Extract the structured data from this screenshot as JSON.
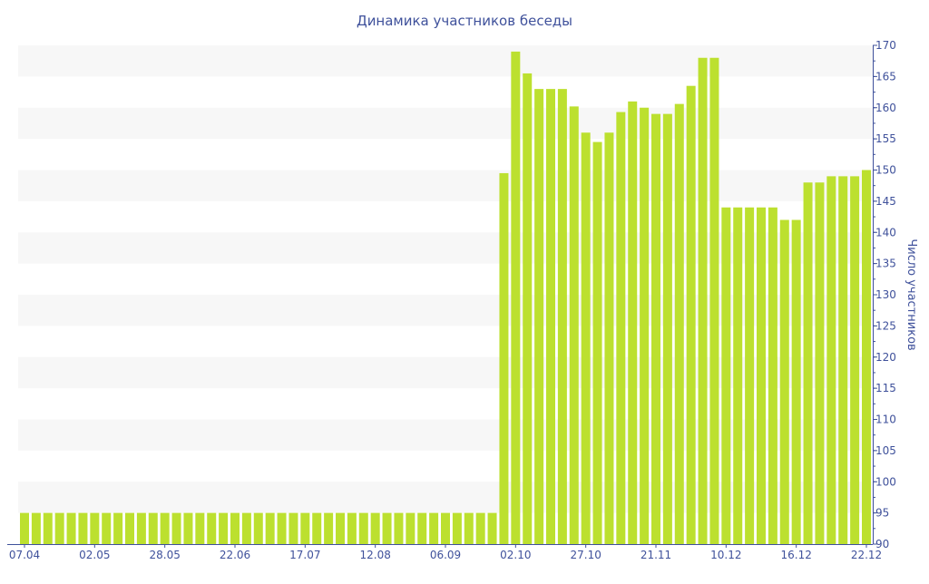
{
  "chart_data": {
    "type": "bar",
    "title": "Динамика участников беседы",
    "xlabel": "",
    "ylabel": "Число участников",
    "ylim": [
      90,
      170
    ],
    "y_ticks": [
      90,
      95,
      100,
      105,
      110,
      115,
      120,
      125,
      130,
      135,
      140,
      145,
      150,
      155,
      160,
      165,
      170
    ],
    "x_tick_labels": [
      "07.04",
      "02.05",
      "28.05",
      "22.06",
      "17.07",
      "12.08",
      "06.09",
      "02.10",
      "27.10",
      "21.11",
      "10.12",
      "16.12",
      "22.12"
    ],
    "x_tick_every_n_bars": 6,
    "values": [
      95,
      95,
      95,
      95,
      95,
      95,
      95,
      95,
      95,
      95,
      95,
      95,
      95,
      95,
      95,
      95,
      95,
      95,
      95,
      95,
      95,
      95,
      95,
      95,
      95,
      95,
      95,
      95,
      95,
      95,
      95,
      95,
      95,
      95,
      95,
      95,
      95,
      95,
      95,
      95,
      95,
      149.5,
      169,
      165.5,
      163,
      163,
      163,
      160.2,
      156,
      154.5,
      156,
      159.3,
      161,
      160,
      159,
      159,
      160.6,
      163.5,
      168,
      168,
      144,
      144,
      144,
      144,
      144,
      142,
      142,
      148,
      148,
      149,
      149,
      149,
      150
    ],
    "grid": "alternating horizontal bands",
    "legend": "none",
    "y_axis_position": "right",
    "colors": {
      "bar": "#bce02f",
      "axis": "#3f519b",
      "band": "#f7f7f7"
    }
  }
}
